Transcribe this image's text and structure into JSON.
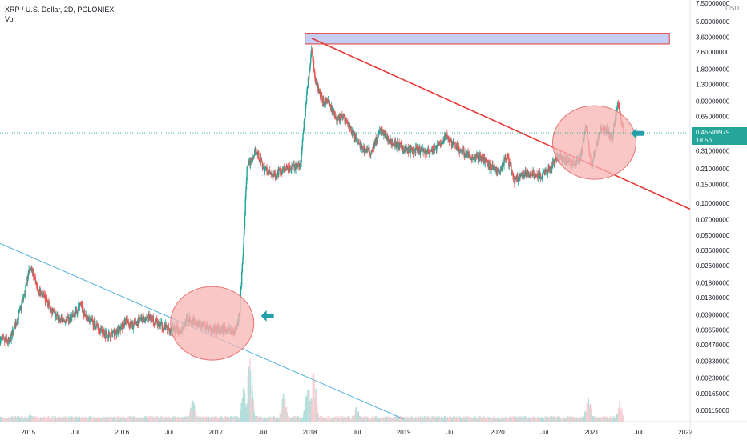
{
  "header": {
    "title": "XRP / U.S. Dollar, 2D, POLONIEX",
    "vol_label": "Vol"
  },
  "chart_data": {
    "type": "candlestick",
    "title": "XRP / U.S. Dollar, 2D, POLONIEX",
    "y_unit": "USD",
    "y_scale": "log",
    "ylim": [
      0.0009,
      8.0
    ],
    "y_ticks": [
      "7.50000000",
      "5.00000000",
      "3.60000000",
      "2.60000000",
      "1.80000000",
      "1.30000000",
      "0.90000000",
      "0.65000000",
      "0.31000000",
      "0.21000000",
      "0.15000000",
      "0.10000000",
      "0.07000000",
      "0.05000000",
      "0.03600000",
      "0.02600000",
      "0.01800000",
      "0.01300000",
      "0.00900000",
      "0.00650000",
      "0.00470000",
      "0.00330000",
      "0.00230000",
      "0.00165000",
      "0.00115000"
    ],
    "y_tick_values": [
      7.5,
      5.0,
      3.6,
      2.6,
      1.8,
      1.3,
      0.9,
      0.65,
      0.31,
      0.21,
      0.15,
      0.1,
      0.07,
      0.05,
      0.036,
      0.026,
      0.018,
      0.013,
      0.009,
      0.0065,
      0.0047,
      0.0033,
      0.0023,
      0.00165,
      0.00115
    ],
    "x_range": [
      2014.7,
      2022.05
    ],
    "x_ticks": [
      {
        "label": "2015",
        "t": 2015.0
      },
      {
        "label": "Jul",
        "t": 2015.5
      },
      {
        "label": "2016",
        "t": 2016.0
      },
      {
        "label": "Jul",
        "t": 2016.5
      },
      {
        "label": "2017",
        "t": 2017.0
      },
      {
        "label": "Jul",
        "t": 2017.5
      },
      {
        "label": "2018",
        "t": 2018.0
      },
      {
        "label": "Jul",
        "t": 2018.5
      },
      {
        "label": "2019",
        "t": 2019.0
      },
      {
        "label": "Jul",
        "t": 2019.5
      },
      {
        "label": "2020",
        "t": 2020.0
      },
      {
        "label": "Jul",
        "t": 2020.5
      },
      {
        "label": "2021",
        "t": 2021.0
      },
      {
        "label": "Jul",
        "t": 2021.5
      },
      {
        "label": "2022",
        "t": 2022.0
      }
    ],
    "last_price": {
      "value": "0.45589979",
      "numeric": 0.4559,
      "countdown": "1d 5h"
    },
    "price_path": [
      [
        2014.7,
        0.0052
      ],
      [
        2014.8,
        0.005
      ],
      [
        2014.9,
        0.009
      ],
      [
        2014.96,
        0.014
      ],
      [
        2015.02,
        0.026
      ],
      [
        2015.1,
        0.016
      ],
      [
        2015.2,
        0.012
      ],
      [
        2015.3,
        0.0085
      ],
      [
        2015.4,
        0.0078
      ],
      [
        2015.5,
        0.009
      ],
      [
        2015.55,
        0.0115
      ],
      [
        2015.6,
        0.009
      ],
      [
        2015.75,
        0.0068
      ],
      [
        2015.85,
        0.0058
      ],
      [
        2015.95,
        0.0062
      ],
      [
        2016.05,
        0.0078
      ],
      [
        2016.1,
        0.007
      ],
      [
        2016.2,
        0.0082
      ],
      [
        2016.3,
        0.0086
      ],
      [
        2016.4,
        0.0072
      ],
      [
        2016.5,
        0.0066
      ],
      [
        2016.62,
        0.0064
      ],
      [
        2016.7,
        0.0082
      ],
      [
        2016.8,
        0.0076
      ],
      [
        2016.9,
        0.0068
      ],
      [
        2017.0,
        0.0064
      ],
      [
        2017.1,
        0.0066
      ],
      [
        2017.2,
        0.0063
      ],
      [
        2017.25,
        0.009
      ],
      [
        2017.29,
        0.036
      ],
      [
        2017.33,
        0.22
      ],
      [
        2017.37,
        0.25
      ],
      [
        2017.42,
        0.32
      ],
      [
        2017.5,
        0.22
      ],
      [
        2017.6,
        0.18
      ],
      [
        2017.7,
        0.2
      ],
      [
        2017.8,
        0.21
      ],
      [
        2017.9,
        0.23
      ],
      [
        2017.96,
        0.9
      ],
      [
        2018.02,
        2.8
      ],
      [
        2018.06,
        1.4
      ],
      [
        2018.12,
        0.95
      ],
      [
        2018.2,
        0.85
      ],
      [
        2018.28,
        0.62
      ],
      [
        2018.36,
        0.65
      ],
      [
        2018.45,
        0.46
      ],
      [
        2018.55,
        0.33
      ],
      [
        2018.65,
        0.3
      ],
      [
        2018.75,
        0.48
      ],
      [
        2018.85,
        0.38
      ],
      [
        2018.95,
        0.34
      ],
      [
        2019.05,
        0.31
      ],
      [
        2019.15,
        0.31
      ],
      [
        2019.25,
        0.3
      ],
      [
        2019.35,
        0.33
      ],
      [
        2019.45,
        0.42
      ],
      [
        2019.52,
        0.36
      ],
      [
        2019.62,
        0.3
      ],
      [
        2019.72,
        0.27
      ],
      [
        2019.82,
        0.27
      ],
      [
        2019.92,
        0.22
      ],
      [
        2020.02,
        0.2
      ],
      [
        2020.1,
        0.28
      ],
      [
        2020.18,
        0.16
      ],
      [
        2020.26,
        0.18
      ],
      [
        2020.36,
        0.19
      ],
      [
        2020.46,
        0.18
      ],
      [
        2020.56,
        0.21
      ],
      [
        2020.64,
        0.28
      ],
      [
        2020.72,
        0.25
      ],
      [
        2020.8,
        0.24
      ],
      [
        2020.88,
        0.26
      ],
      [
        2020.94,
        0.52
      ],
      [
        2021.0,
        0.22
      ],
      [
        2021.06,
        0.38
      ],
      [
        2021.1,
        0.5
      ],
      [
        2021.16,
        0.48
      ],
      [
        2021.22,
        0.4
      ],
      [
        2021.28,
        0.9
      ],
      [
        2021.34,
        0.45
      ]
    ],
    "volume_peaks": [
      [
        2017.3,
        0.55
      ],
      [
        2017.36,
        0.95
      ],
      [
        2017.72,
        0.45
      ],
      [
        2017.98,
        0.7
      ],
      [
        2018.04,
        0.85
      ],
      [
        2016.75,
        0.35
      ],
      [
        2020.97,
        0.4
      ],
      [
        2021.3,
        0.3
      ],
      [
        2015.02,
        0.12
      ],
      [
        2018.5,
        0.25
      ],
      [
        2019.5,
        0.1
      ]
    ],
    "annotations": {
      "resistance_box": {
        "t_start": 2017.95,
        "t_end": 2021.83,
        "p_low": 3.1,
        "p_high": 3.9,
        "fill": "#c5cff5",
        "stroke": "#e53935"
      },
      "red_trendline": {
        "from": {
          "t": 2018.02,
          "p": 3.5
        },
        "to": {
          "t": 2022.05,
          "p": 0.088
        },
        "color": "#e53935"
      },
      "blue_trendline": {
        "from": {
          "t": 2014.7,
          "p": 0.042
        },
        "to": {
          "t": 2019.0,
          "p": 0.00095
        },
        "color": "#4fb0de"
      },
      "circles": [
        {
          "t": 2016.96,
          "p": 0.0075,
          "color": "#f8b4b4",
          "stroke": "#e57373"
        },
        {
          "t": 2021.03,
          "p": 0.37,
          "color": "#f8b4b4",
          "stroke": "#e57373"
        }
      ],
      "arrows": [
        {
          "t": 2017.48,
          "p": 0.0088,
          "color": "#26a0a8"
        },
        {
          "t": 2021.42,
          "p": 0.45,
          "color": "#26a0a8"
        }
      ]
    },
    "colors": {
      "up": "#26a69a",
      "down": "#ef5350",
      "volume_up": "#b2dfdb",
      "volume_down": "#ffcdd2",
      "price_label": "#26a69a"
    }
  }
}
